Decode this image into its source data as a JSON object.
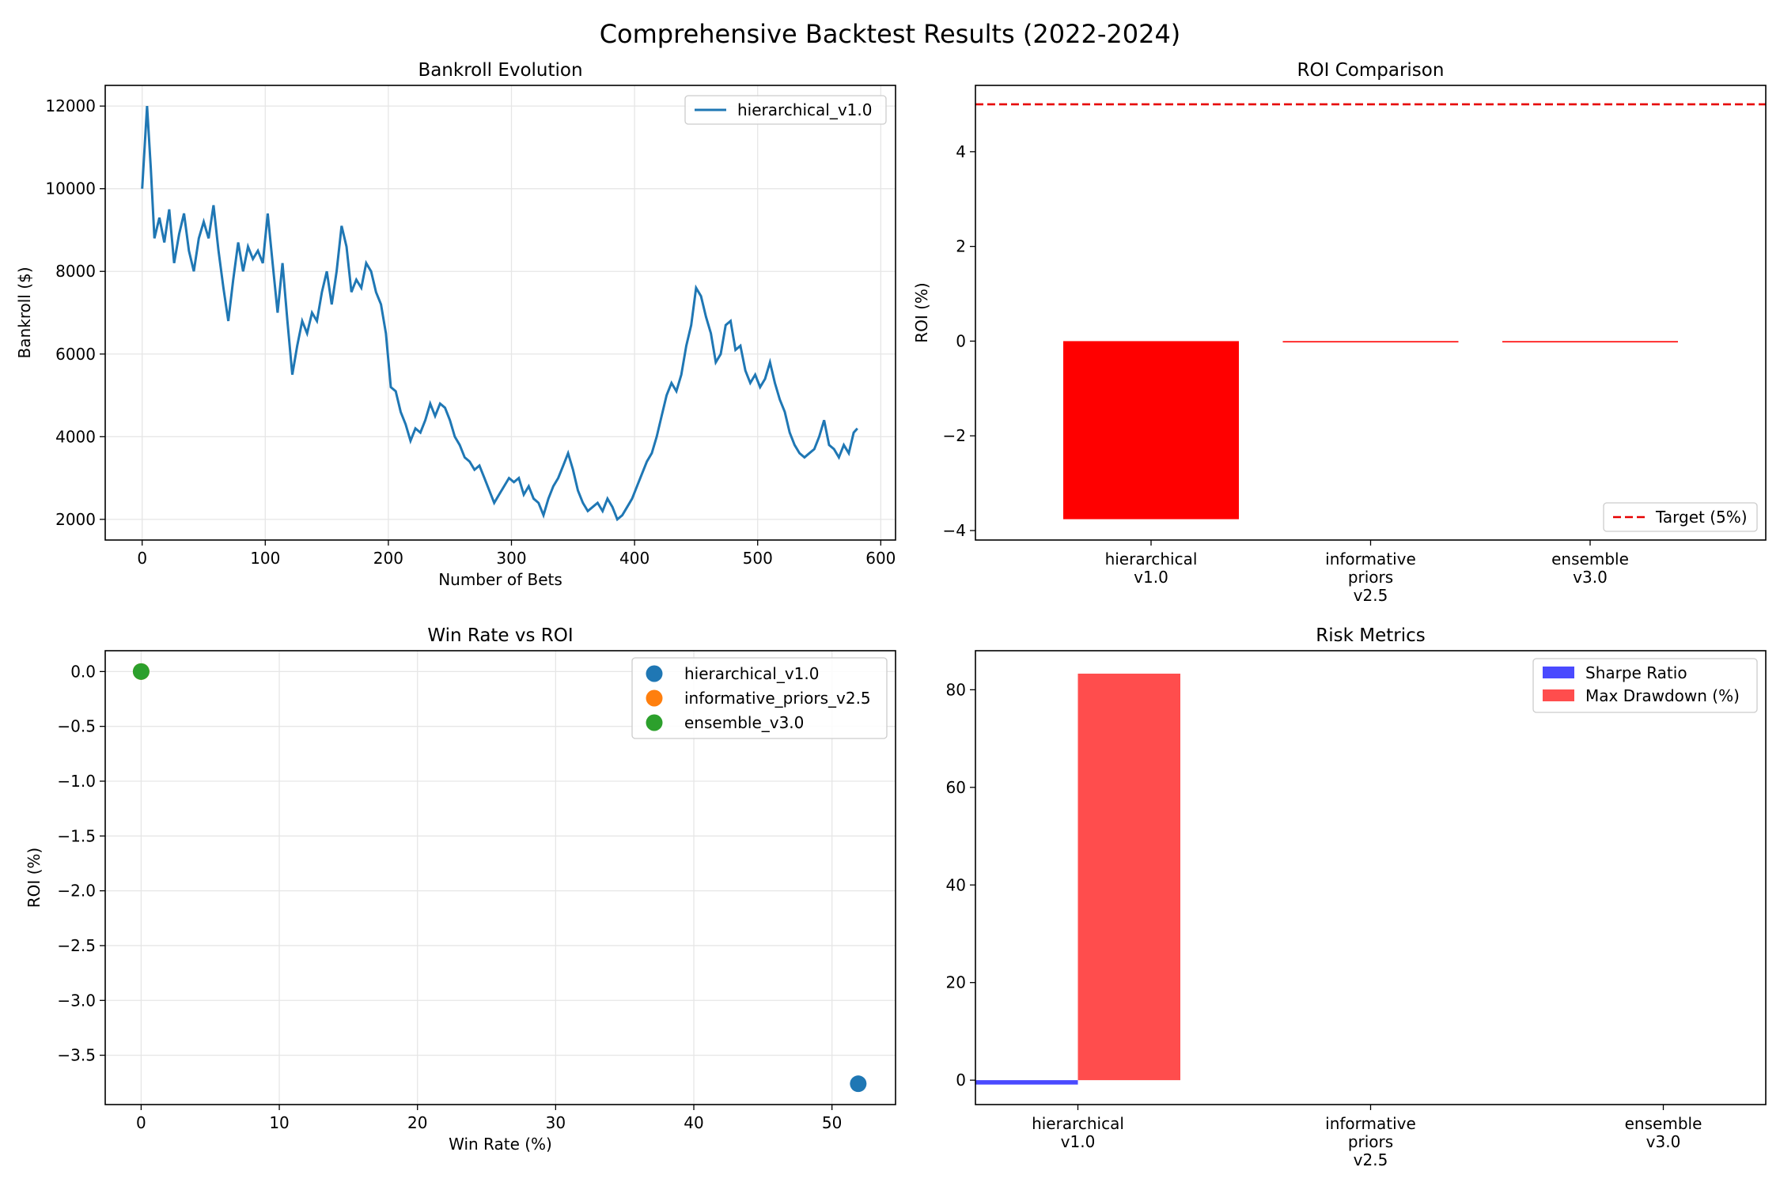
{
  "figure_title": "Comprehensive Backtest Results (2022-2024)",
  "colors": {
    "blue": "#1f77b4",
    "orange": "#ff7f0e",
    "green": "#2ca02c",
    "red": "#ff0000",
    "risk_blue": "#4a4aff",
    "risk_red": "#ff4d4d",
    "target_line": "#e60000"
  },
  "chart_data": [
    {
      "id": "bankroll",
      "type": "line",
      "title": "Bankroll Evolution",
      "xlabel": "Number of Bets",
      "ylabel": "Bankroll ($)",
      "xlim": [
        -30,
        612
      ],
      "ylim": [
        1500,
        12500
      ],
      "xticks": [
        0,
        100,
        200,
        300,
        400,
        500,
        600
      ],
      "yticks": [
        2000,
        4000,
        6000,
        8000,
        10000,
        12000
      ],
      "grid": true,
      "legend_position": "upper right",
      "series": [
        {
          "name": "hierarchical_v1.0",
          "points": [
            [
              0,
              10000
            ],
            [
              4,
              12000
            ],
            [
              7,
              10500
            ],
            [
              10,
              8800
            ],
            [
              14,
              9300
            ],
            [
              18,
              8700
            ],
            [
              22,
              9500
            ],
            [
              26,
              8200
            ],
            [
              30,
              8900
            ],
            [
              34,
              9400
            ],
            [
              38,
              8500
            ],
            [
              42,
              8000
            ],
            [
              46,
              8800
            ],
            [
              50,
              9200
            ],
            [
              54,
              8800
            ],
            [
              58,
              9600
            ],
            [
              62,
              8500
            ],
            [
              66,
              7600
            ],
            [
              70,
              6800
            ],
            [
              74,
              7800
            ],
            [
              78,
              8700
            ],
            [
              82,
              8000
            ],
            [
              86,
              8600
            ],
            [
              90,
              8300
            ],
            [
              94,
              8500
            ],
            [
              98,
              8200
            ],
            [
              102,
              9400
            ],
            [
              106,
              8200
            ],
            [
              110,
              7000
            ],
            [
              114,
              8200
            ],
            [
              118,
              6800
            ],
            [
              122,
              5500
            ],
            [
              126,
              6200
            ],
            [
              130,
              6800
            ],
            [
              134,
              6500
            ],
            [
              138,
              7000
            ],
            [
              142,
              6800
            ],
            [
              146,
              7500
            ],
            [
              150,
              8000
            ],
            [
              154,
              7200
            ],
            [
              158,
              8000
            ],
            [
              162,
              9100
            ],
            [
              166,
              8600
            ],
            [
              170,
              7500
            ],
            [
              174,
              7800
            ],
            [
              178,
              7600
            ],
            [
              182,
              8200
            ],
            [
              186,
              8000
            ],
            [
              190,
              7500
            ],
            [
              194,
              7200
            ],
            [
              198,
              6500
            ],
            [
              202,
              5200
            ],
            [
              206,
              5100
            ],
            [
              210,
              4600
            ],
            [
              214,
              4300
            ],
            [
              218,
              3900
            ],
            [
              222,
              4200
            ],
            [
              226,
              4100
            ],
            [
              230,
              4400
            ],
            [
              234,
              4800
            ],
            [
              238,
              4500
            ],
            [
              242,
              4800
            ],
            [
              246,
              4700
            ],
            [
              250,
              4400
            ],
            [
              254,
              4000
            ],
            [
              258,
              3800
            ],
            [
              262,
              3500
            ],
            [
              266,
              3400
            ],
            [
              270,
              3200
            ],
            [
              274,
              3300
            ],
            [
              278,
              3000
            ],
            [
              282,
              2700
            ],
            [
              286,
              2400
            ],
            [
              290,
              2600
            ],
            [
              294,
              2800
            ],
            [
              298,
              3000
            ],
            [
              302,
              2900
            ],
            [
              306,
              3000
            ],
            [
              310,
              2600
            ],
            [
              314,
              2800
            ],
            [
              318,
              2500
            ],
            [
              322,
              2400
            ],
            [
              326,
              2100
            ],
            [
              330,
              2500
            ],
            [
              334,
              2800
            ],
            [
              338,
              3000
            ],
            [
              342,
              3300
            ],
            [
              346,
              3600
            ],
            [
              350,
              3200
            ],
            [
              354,
              2700
            ],
            [
              358,
              2400
            ],
            [
              362,
              2200
            ],
            [
              366,
              2300
            ],
            [
              370,
              2400
            ],
            [
              374,
              2200
            ],
            [
              378,
              2500
            ],
            [
              382,
              2300
            ],
            [
              386,
              2000
            ],
            [
              390,
              2100
            ],
            [
              394,
              2300
            ],
            [
              398,
              2500
            ],
            [
              402,
              2800
            ],
            [
              406,
              3100
            ],
            [
              410,
              3400
            ],
            [
              414,
              3600
            ],
            [
              418,
              4000
            ],
            [
              422,
              4500
            ],
            [
              426,
              5000
            ],
            [
              430,
              5300
            ],
            [
              434,
              5100
            ],
            [
              438,
              5500
            ],
            [
              442,
              6200
            ],
            [
              446,
              6700
            ],
            [
              450,
              7600
            ],
            [
              454,
              7400
            ],
            [
              458,
              6900
            ],
            [
              462,
              6500
            ],
            [
              466,
              5800
            ],
            [
              470,
              6000
            ],
            [
              474,
              6700
            ],
            [
              478,
              6800
            ],
            [
              482,
              6100
            ],
            [
              486,
              6200
            ],
            [
              490,
              5600
            ],
            [
              494,
              5300
            ],
            [
              498,
              5500
            ],
            [
              502,
              5200
            ],
            [
              506,
              5400
            ],
            [
              510,
              5800
            ],
            [
              514,
              5300
            ],
            [
              518,
              4900
            ],
            [
              522,
              4600
            ],
            [
              526,
              4100
            ],
            [
              530,
              3800
            ],
            [
              534,
              3600
            ],
            [
              538,
              3500
            ],
            [
              542,
              3600
            ],
            [
              546,
              3700
            ],
            [
              550,
              4000
            ],
            [
              554,
              4400
            ],
            [
              558,
              3800
            ],
            [
              562,
              3700
            ],
            [
              566,
              3500
            ],
            [
              570,
              3800
            ],
            [
              574,
              3600
            ],
            [
              578,
              4100
            ],
            [
              581,
              4200
            ]
          ]
        }
      ]
    },
    {
      "id": "roi",
      "type": "bar",
      "title": "ROI Comparison",
      "ylabel": "ROI (%)",
      "ylim": [
        -4.2,
        5.4
      ],
      "yticks": [
        -4,
        -2,
        0,
        2,
        4
      ],
      "categories": [
        [
          "hierarchical",
          "v1.0"
        ],
        [
          "informative",
          "priors",
          "v2.5"
        ],
        [
          "ensemble",
          "v3.0"
        ]
      ],
      "values": [
        -3.76,
        0,
        0
      ],
      "target": {
        "value": 5,
        "label": "Target (5%)"
      },
      "legend_position": "lower right"
    },
    {
      "id": "winrate",
      "type": "scatter",
      "title": "Win Rate vs ROI",
      "xlabel": "Win Rate (%)",
      "ylabel": "ROI (%)",
      "xlim": [
        -2.6,
        54.6
      ],
      "ylim": [
        -3.95,
        0.19
      ],
      "xticks": [
        0,
        10,
        20,
        30,
        40,
        50
      ],
      "yticks": [
        0.0,
        -0.5,
        -1.0,
        -1.5,
        -2.0,
        -2.5,
        -3.0,
        -3.5
      ],
      "ytick_labels": [
        "0.0",
        "−0.5",
        "−1.0",
        "−1.5",
        "−2.0",
        "−2.5",
        "−3.0",
        "−3.5"
      ],
      "grid": true,
      "legend_position": "upper right",
      "series": [
        {
          "name": "hierarchical_v1.0",
          "x": 51.9,
          "y": -3.76
        },
        {
          "name": "informative_priors_v2.5",
          "x": 0,
          "y": 0
        },
        {
          "name": "ensemble_v3.0",
          "x": 0,
          "y": 0
        }
      ]
    },
    {
      "id": "risk",
      "type": "bar",
      "title": "Risk Metrics",
      "ylim": [
        -5,
        88
      ],
      "yticks": [
        0,
        20,
        40,
        60,
        80
      ],
      "categories": [
        [
          "hierarchical",
          "v1.0"
        ],
        [
          "informative",
          "priors",
          "v2.5"
        ],
        [
          "ensemble",
          "v3.0"
        ]
      ],
      "legend_position": "upper right",
      "series": [
        {
          "name": "Sharpe Ratio",
          "values": [
            -0.9,
            0,
            0
          ]
        },
        {
          "name": "Max Drawdown (%)",
          "values": [
            83.3,
            0,
            0
          ]
        }
      ]
    }
  ]
}
